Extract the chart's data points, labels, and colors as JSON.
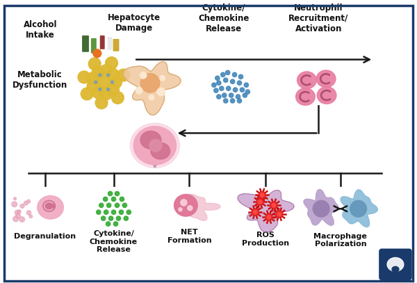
{
  "bg_color": "#ffffff",
  "border_color": "#1a3a6b",
  "border_linewidth": 2.5,
  "labels_top": {
    "alcohol_intake": "Alcohol\nIntake",
    "metabolic": "Metabolic\nDysfunction",
    "hepatocyte": "Hepatocyte\nDamage",
    "cytokine_top": "Cytokine/\nChemokine\nRelease",
    "neutrophil": "Neutrophil\nRecruitment/\nActivation"
  },
  "labels_bottom": {
    "degranulation": "Degranulation",
    "cytokine_bot": "Cytokine/\nChemokine\nRelease",
    "net": "NET\nFormation",
    "ros": "ROS\nProduction",
    "macrophage": "Macrophage\nPolarization"
  },
  "arrow_color": "#1a1a1a",
  "pink_main": "#e87ba0",
  "pink_light": "#f4c0d0",
  "pink_mid": "#de6b8a",
  "blue_dot": "#4488bb",
  "green_dot": "#33aa33",
  "hepatocyte_main": "#f0c8a0",
  "hepatocyte_border": "#d4a870",
  "fat_yellow": "#ddb830",
  "fat_border": "#b89020",
  "macrophage_purple": "#b8a0cc",
  "macrophage_purple_dark": "#9880b0",
  "macrophage_blue": "#88bbd8",
  "macrophage_blue_dark": "#6699bb",
  "ros_blob": "#c8a0cc",
  "ros_red": "#cc1111",
  "net_pink": "#e07898",
  "net_blob": "#f0b8c8",
  "logo_bg": "#1a3a6b",
  "font_size": 8.5,
  "font_size_sm": 8
}
